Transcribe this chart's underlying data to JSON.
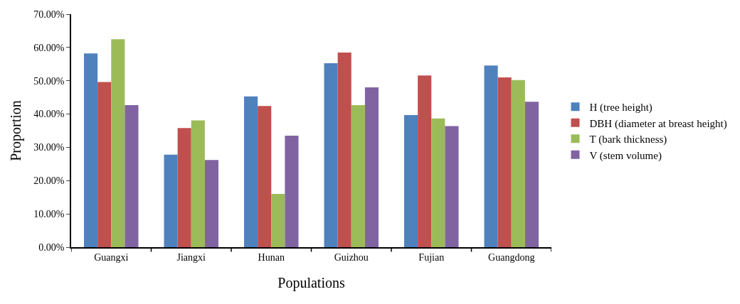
{
  "chart_data": {
    "type": "bar",
    "xlabel": "Populations",
    "ylabel": "Proportion",
    "categories": [
      "Guangxi",
      "Jiangxi",
      "Hunan",
      "Guizhou",
      "Fujian",
      "Guangdong"
    ],
    "series": [
      {
        "name": "H (tree height)",
        "color": "#4f81bd",
        "values": [
          58.2,
          27.8,
          45.3,
          55.3,
          39.7,
          54.6
        ]
      },
      {
        "name": "DBH (diameter at breast height)",
        "color": "#c0504d",
        "values": [
          49.6,
          35.8,
          42.4,
          58.5,
          51.6,
          51.0
        ]
      },
      {
        "name": "T (bark thickness)",
        "color": "#9bbb59",
        "values": [
          62.5,
          38.1,
          16.0,
          42.7,
          38.7,
          50.2
        ]
      },
      {
        "name": "V (stem volume)",
        "color": "#8064a2",
        "values": [
          42.7,
          26.2,
          33.5,
          48.0,
          36.4,
          43.7
        ]
      }
    ],
    "ylim": [
      0,
      70
    ],
    "yticks": [
      {
        "value": 0,
        "label": "0.00%"
      },
      {
        "value": 10,
        "label": "10.00%"
      },
      {
        "value": 20,
        "label": "20.00%"
      },
      {
        "value": 30,
        "label": "30.00%"
      },
      {
        "value": 40,
        "label": "40.00%"
      },
      {
        "value": 50,
        "label": "50.00%"
      },
      {
        "value": 60,
        "label": "60.00%"
      },
      {
        "value": 70,
        "label": "70.00%"
      }
    ],
    "legend": "right"
  }
}
